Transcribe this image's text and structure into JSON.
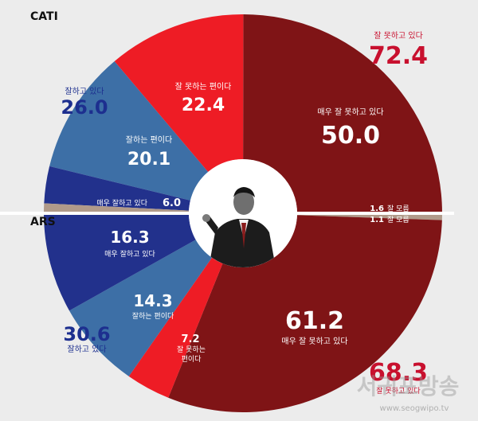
{
  "sections": {
    "top": "CATI",
    "bottom": "ARS"
  },
  "colors": {
    "bg": "#ececec",
    "dark_red": "#7f1416",
    "red": "#ee1c25",
    "steel_blue": "#3d6fa6",
    "navy": "#22318c",
    "beige": "#b09a8a",
    "accent_red_text": "#c8102e",
    "navy_text": "#1d2f8f"
  },
  "chart_data": [
    {
      "type": "pie",
      "group": "CATI",
      "slices": [
        {
          "label": "매우 잘 못하고 있다",
          "value": 50.0,
          "display": "50.0",
          "color": "#7f1416"
        },
        {
          "label": "잘 못하는 편이다",
          "value": 22.4,
          "display": "22.4",
          "color": "#ee1c25"
        },
        {
          "label": "잘하는 편이다",
          "value": 20.1,
          "display": "20.1",
          "color": "#3d6fa6"
        },
        {
          "label": "매우 잘하고 있다",
          "value": 6.0,
          "display": "6.0",
          "color": "#22318c"
        },
        {
          "label": "잘 모름",
          "value": 1.6,
          "display": "1.6",
          "color": "#b09a8a"
        }
      ],
      "totals": [
        {
          "label": "잘 못하고 있다",
          "value": 72.4,
          "display": "72.4"
        },
        {
          "label": "잘하고 있다",
          "value": 26.0,
          "display": "26.0"
        }
      ]
    },
    {
      "type": "pie",
      "group": "ARS",
      "slices": [
        {
          "label": "잘 모름",
          "value": 1.1,
          "display": "1.1",
          "color": "#b09a8a"
        },
        {
          "label": "매우 잘 못하고 있다",
          "value": 61.2,
          "display": "61.2",
          "color": "#7f1416"
        },
        {
          "label": "잘 못하는 편이다",
          "value": 7.2,
          "display": "7.2",
          "color": "#ee1c25"
        },
        {
          "label": "잘하는 편이다",
          "value": 14.3,
          "display": "14.3",
          "color": "#3d6fa6"
        },
        {
          "label": "매우 잘하고 있다",
          "value": 16.3,
          "display": "16.3",
          "color": "#22318c"
        }
      ],
      "totals": [
        {
          "label": "잘 못하고 있다",
          "value": 68.3,
          "display": "68.3"
        },
        {
          "label": "잘하고 있다",
          "value": 30.6,
          "display": "30.6"
        }
      ]
    }
  ],
  "watermark": {
    "text": "서귀포방송",
    "url": "www.seogwipo.tv"
  }
}
